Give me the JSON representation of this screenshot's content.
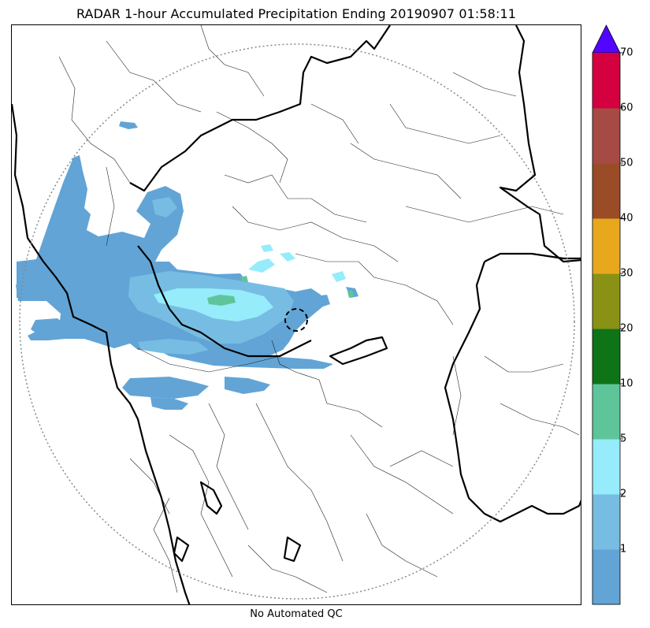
{
  "title": "RADAR 1-hour Accumulated Precipitation Ending 20190907 01:58:11",
  "footer": "No Automated QC",
  "colorbar": {
    "levels": [
      "1",
      "2",
      "5",
      "10",
      "20",
      "30",
      "40",
      "50",
      "60",
      "70"
    ],
    "bins": [
      {
        "from": 0,
        "to": 1,
        "color": "#62a4d6"
      },
      {
        "from": 1,
        "to": 2,
        "color": "#77bde3"
      },
      {
        "from": 2,
        "to": 5,
        "color": "#96ecfb"
      },
      {
        "from": 5,
        "to": 10,
        "color": "#5ec59b"
      },
      {
        "from": 10,
        "to": 20,
        "color": "#0e7417"
      },
      {
        "from": 20,
        "to": 30,
        "color": "#8a9216"
      },
      {
        "from": 30,
        "to": 40,
        "color": "#e8a81d"
      },
      {
        "from": 40,
        "to": 50,
        "color": "#9a4c27"
      },
      {
        "from": 50,
        "to": 60,
        "color": "#a64b44"
      },
      {
        "from": 60,
        "to": 70,
        "color": "#d5003f"
      }
    ],
    "extend_color": "#5306ff",
    "extend": "max"
  },
  "map": {
    "radar_range_ring": "dotted grey circle",
    "radar_site_marker": "dashed black circle",
    "colors": {
      "boundary_major": "#000000",
      "boundary_minor": "#222222",
      "range_ring": "#888888"
    }
  }
}
